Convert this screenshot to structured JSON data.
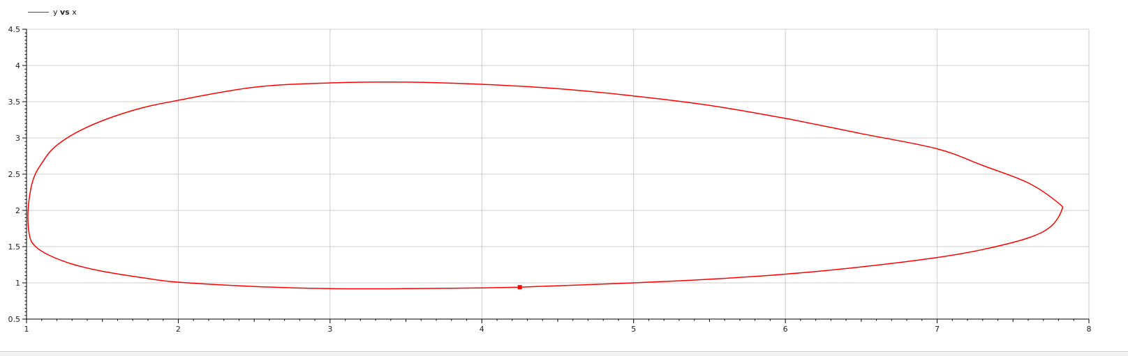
{
  "legend": {
    "label_y": "y",
    "label_vs": "vs",
    "label_x": "x",
    "color": "#ff0000"
  },
  "chart_data": {
    "type": "line",
    "title": "",
    "xlabel": "",
    "ylabel": "",
    "xlim": [
      1,
      8
    ],
    "ylim": [
      0.5,
      4.5
    ],
    "grid": true,
    "legend_position": "top-left",
    "xticks": [
      "1",
      "2",
      "3",
      "4",
      "5",
      "6",
      "7",
      "8"
    ],
    "yticks": [
      "0.5",
      "1",
      "1.5",
      "2",
      "2.5",
      "3",
      "3.5",
      "4",
      "4.5"
    ],
    "series": [
      {
        "name": "y vs x",
        "color": "#ff0000",
        "x": [
          4.25,
          5.0,
          5.5,
          6.0,
          6.5,
          7.0,
          7.3,
          7.6,
          7.75,
          7.82,
          7.8,
          7.6,
          7.3,
          7.0,
          6.5,
          6.0,
          5.5,
          5.0,
          4.5,
          4.0,
          3.5,
          3.0,
          2.5,
          2.0,
          1.7,
          1.4,
          1.2,
          1.1,
          1.04,
          1.01,
          1.02,
          1.06,
          1.15,
          1.3,
          1.5,
          1.8,
          2.0,
          2.5,
          3.0,
          3.5,
          4.0,
          4.25
        ],
        "y": [
          0.94,
          1.0,
          1.05,
          1.12,
          1.22,
          1.35,
          1.46,
          1.62,
          1.78,
          2.0,
          2.1,
          2.38,
          2.62,
          2.85,
          3.06,
          3.27,
          3.45,
          3.58,
          3.68,
          3.74,
          3.77,
          3.76,
          3.7,
          3.52,
          3.38,
          3.15,
          2.9,
          2.65,
          2.4,
          2.0,
          1.65,
          1.5,
          1.38,
          1.26,
          1.16,
          1.06,
          1.01,
          0.95,
          0.92,
          0.92,
          0.93,
          0.94
        ]
      }
    ],
    "markers": [
      {
        "x": 4.25,
        "y": 0.94
      }
    ]
  }
}
